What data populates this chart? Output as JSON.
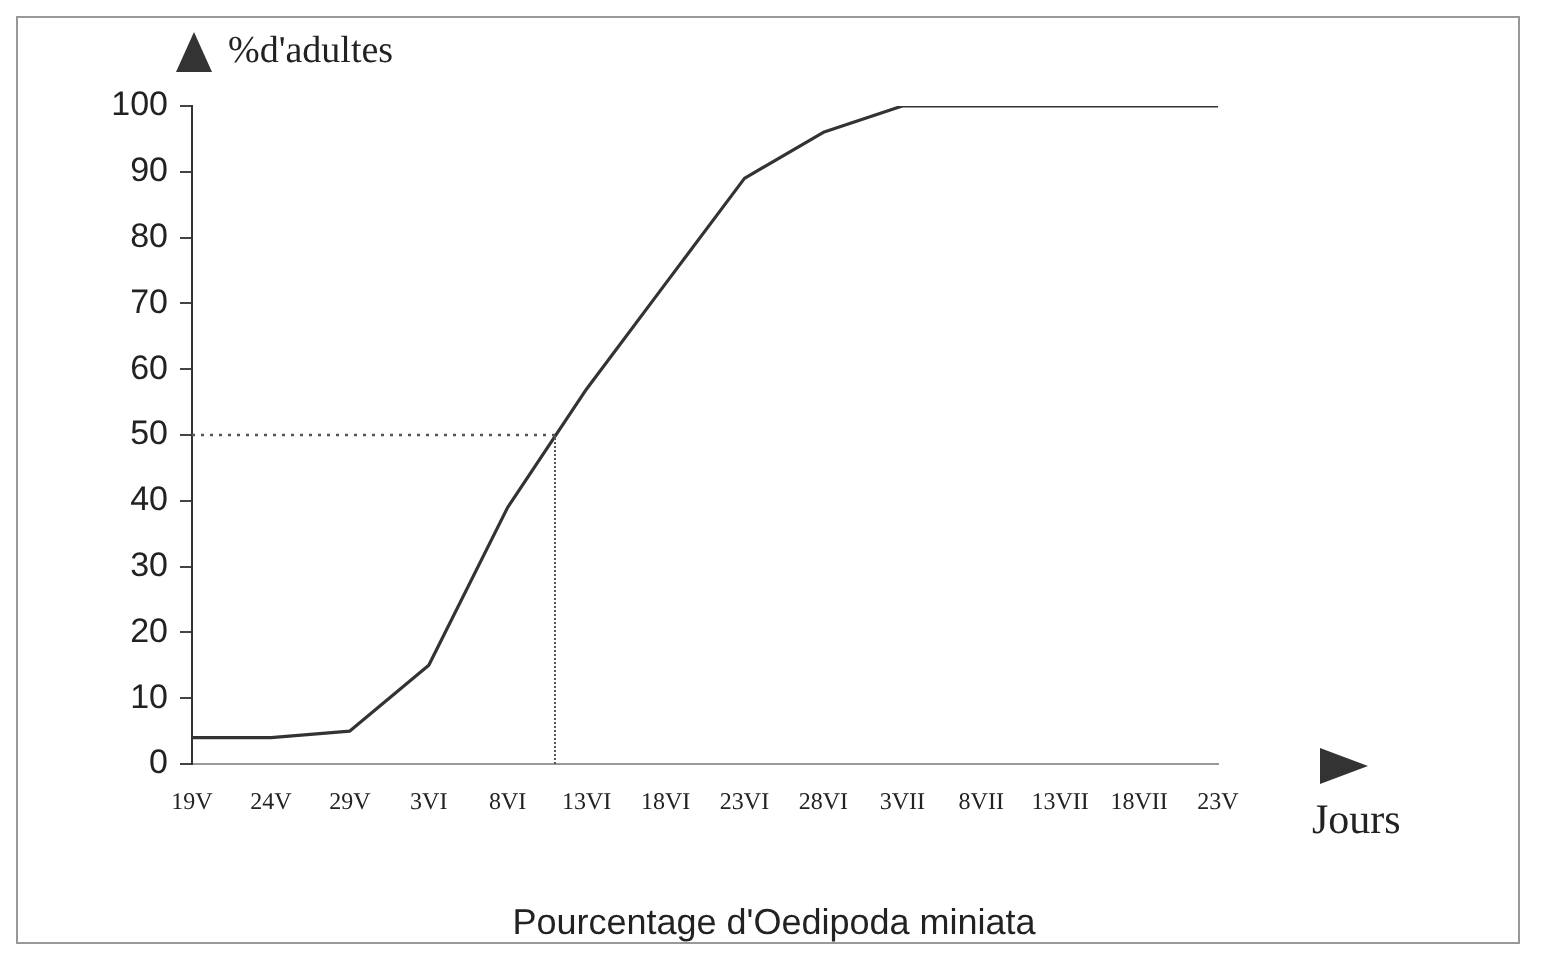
{
  "chart_data": {
    "type": "line",
    "title": "Pourcentage d'Oedipoda miniata",
    "xlabel": "Jours",
    "ylabel": "%d'adultes",
    "categories": [
      "19V",
      "24V",
      "29V",
      "3VI",
      "8VI",
      "13VI",
      "18VI",
      "23VI",
      "28VI",
      "3VII",
      "8VII",
      "13VII",
      "18VII",
      "23V"
    ],
    "series": [
      {
        "color": "#333333",
        "values": [
          4,
          4,
          5,
          15,
          39,
          57,
          73,
          89,
          96,
          100,
          100,
          100,
          100,
          100
        ]
      }
    ],
    "ylim": [
      0,
      100
    ],
    "yticks": [
      0,
      10,
      20,
      30,
      40,
      50,
      60,
      70,
      80,
      90,
      100
    ],
    "ref_lines": [
      {
        "axis": "y",
        "value": 50,
        "line_style": "dotted",
        "color": "#555555"
      }
    ],
    "grid": false,
    "legend": false,
    "marker": "none",
    "line_style": "solid"
  }
}
